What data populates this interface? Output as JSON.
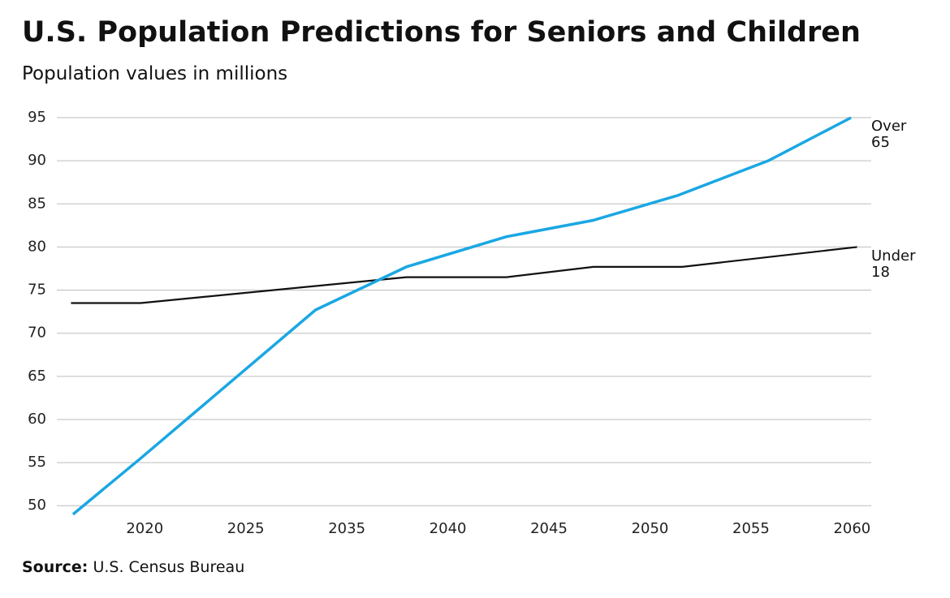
{
  "chart_data": {
    "type": "line",
    "title": "U.S. Population Predictions for Seniors and Children",
    "subtitle": "Population values in millions",
    "source_label": "Source:",
    "source": "U.S. Census Bureau",
    "xlim": [
      0.13,
      8.19
    ],
    "xticks": [
      {
        "value": 1,
        "label": "2020"
      },
      {
        "value": 2,
        "label": "2025"
      },
      {
        "value": 3,
        "label": "2035"
      },
      {
        "value": 4,
        "label": "2040"
      },
      {
        "value": 5,
        "label": "2045"
      },
      {
        "value": 6,
        "label": "2050"
      },
      {
        "value": 7,
        "label": "2055"
      },
      {
        "value": 8,
        "label": "2060"
      }
    ],
    "ylim": [
      48.8,
      95
    ],
    "yticks": [
      50,
      55,
      60,
      65,
      70,
      75,
      80,
      85,
      90,
      95
    ],
    "grid": true,
    "series": [
      {
        "name": "Over 65",
        "color": "#1aa7e3",
        "x": [
          0.29,
          0.96,
          2.69,
          3.59,
          4.58,
          5.44,
          6.28,
          7.17,
          7.99
        ],
        "values": [
          49,
          55.5,
          72.7,
          77.7,
          81.2,
          83.1,
          86,
          90,
          95
        ]
      },
      {
        "name": "Under 18",
        "color": "#111111",
        "x": [
          0.27,
          0.96,
          3.59,
          4.58,
          5.44,
          6.32,
          8.05
        ],
        "values": [
          73.5,
          73.5,
          76.5,
          76.5,
          77.7,
          77.7,
          80
        ]
      }
    ]
  }
}
